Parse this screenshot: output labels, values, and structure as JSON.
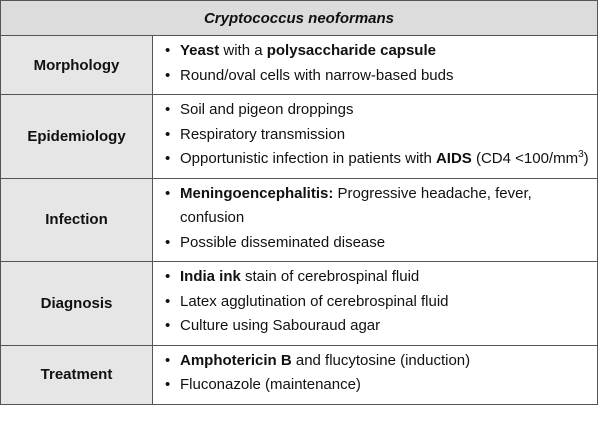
{
  "title": "Cryptococcus neoformans",
  "rows": [
    {
      "label": "Morphology",
      "items": [
        [
          {
            "b": "Yeast"
          },
          {
            "t": " with a "
          },
          {
            "b": "polysaccharide capsule"
          }
        ],
        [
          {
            "t": "Round/oval cells with narrow-based buds"
          }
        ]
      ]
    },
    {
      "label": "Epidemiology",
      "items": [
        [
          {
            "t": "Soil and pigeon droppings"
          }
        ],
        [
          {
            "t": "Respiratory transmission"
          }
        ],
        [
          {
            "t": "Opportunistic infection in patients with "
          },
          {
            "b": "AIDS"
          },
          {
            "t": " (CD4 <100/mm"
          },
          {
            "sup": "3"
          },
          {
            "t": ")"
          }
        ]
      ]
    },
    {
      "label": "Infection",
      "items": [
        [
          {
            "b": "Meningoencephalitis:"
          },
          {
            "t": " Progressive headache, fever, confusion"
          }
        ],
        [
          {
            "t": "Possible disseminated disease"
          }
        ]
      ]
    },
    {
      "label": "Diagnosis",
      "items": [
        [
          {
            "b": "India ink"
          },
          {
            "t": " stain of cerebrospinal fluid"
          }
        ],
        [
          {
            "t": "Latex agglutination of cerebrospinal fluid"
          }
        ],
        [
          {
            "t": "Culture using Sabouraud agar"
          }
        ]
      ]
    },
    {
      "label": "Treatment",
      "items": [
        [
          {
            "b": "Amphotericin B"
          },
          {
            "t": " and flucytosine (induction)"
          }
        ],
        [
          {
            "t": "Fluconazole (maintenance)"
          }
        ]
      ]
    }
  ]
}
